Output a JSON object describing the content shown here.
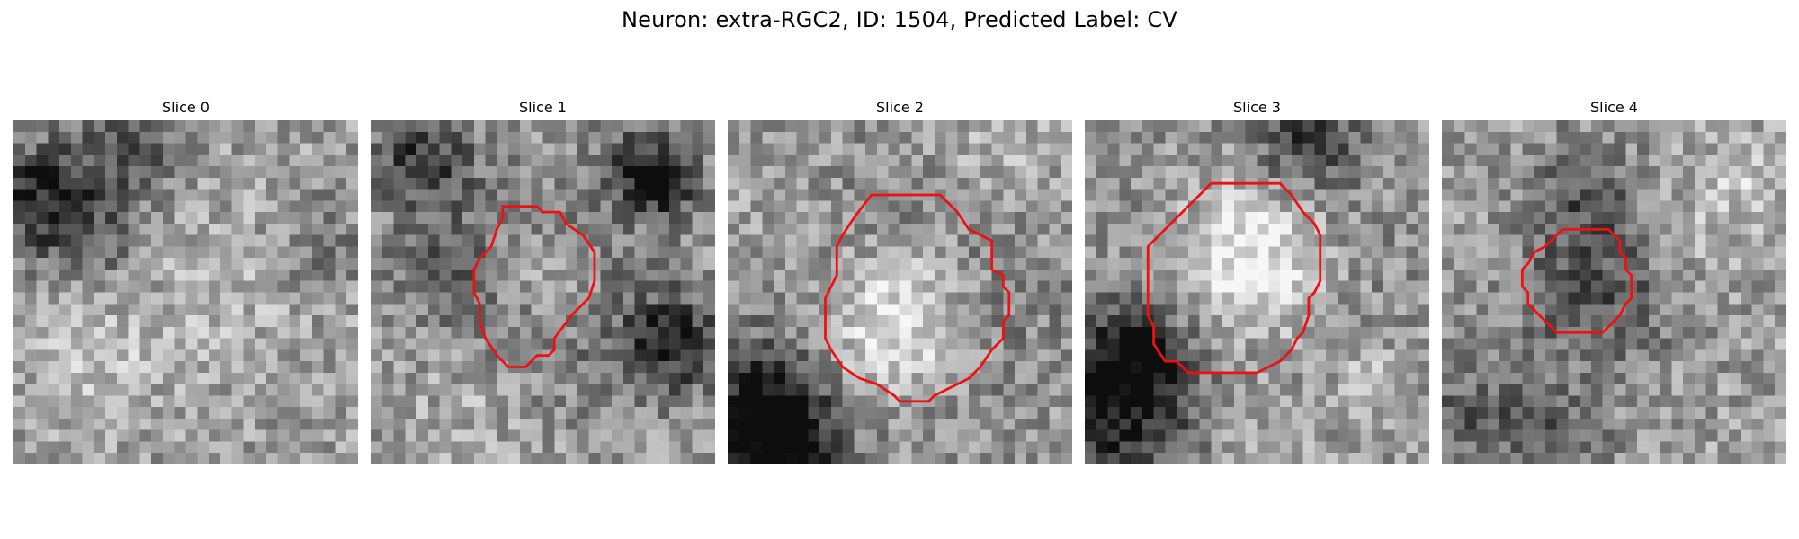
{
  "figure": {
    "title": "Neuron: extra-RGC2, ID: 1504, Predicted Label: CV"
  },
  "contour_color": "#ee1111",
  "image_grid_size": 30,
  "panels": [
    {
      "title": "Slice 0",
      "seed": 11,
      "blobs": [
        {
          "cx": 2,
          "cy": 6,
          "r": 3.5,
          "a": -0.45
        },
        {
          "cx": 10,
          "cy": 2,
          "r": 3,
          "a": -0.3
        },
        {
          "cx": 6,
          "cy": 10,
          "r": 3,
          "a": -0.2
        },
        {
          "cx": 26,
          "cy": 10,
          "r": 3,
          "a": -0.15
        },
        {
          "cx": 7,
          "cy": 20,
          "r": 4,
          "a": 0.12
        },
        {
          "cx": 18,
          "cy": 14,
          "r": 5,
          "a": 0.08
        }
      ],
      "contour": []
    },
    {
      "title": "Slice 1",
      "seed": 23,
      "blobs": [
        {
          "cx": 4,
          "cy": 3,
          "r": 3,
          "a": -0.4
        },
        {
          "cx": 23,
          "cy": 3,
          "r": 2.5,
          "a": -0.3
        },
        {
          "cx": 25,
          "cy": 5,
          "r": 2,
          "a": -0.45
        },
        {
          "cx": 26,
          "cy": 19,
          "r": 3,
          "a": -0.45
        },
        {
          "cx": 15,
          "cy": 14,
          "r": 7,
          "a": -0.25
        },
        {
          "cx": 15,
          "cy": 13,
          "r": 3.5,
          "a": 0.28
        },
        {
          "cx": 9,
          "cy": 24,
          "r": 4,
          "a": 0.1
        },
        {
          "cx": 5,
          "cy": 12,
          "r": 3,
          "a": -0.15
        }
      ],
      "contour": [
        [
          11.5,
          7.5
        ],
        [
          14.5,
          7.5
        ],
        [
          15,
          8
        ],
        [
          16.5,
          8
        ],
        [
          17,
          9
        ],
        [
          18.5,
          10
        ],
        [
          19.5,
          11.5
        ],
        [
          19.5,
          14
        ],
        [
          19,
          15.5
        ],
        [
          17.5,
          17
        ],
        [
          16,
          19
        ],
        [
          16,
          20
        ],
        [
          15.5,
          20.5
        ],
        [
          14.5,
          20.5
        ],
        [
          13.5,
          21.5
        ],
        [
          12,
          21.5
        ],
        [
          11,
          20.5
        ],
        [
          10,
          19
        ],
        [
          9.5,
          17.5
        ],
        [
          9.5,
          16
        ],
        [
          9,
          15
        ],
        [
          9,
          13
        ],
        [
          9.5,
          12
        ],
        [
          10.5,
          11
        ],
        [
          11,
          9.5
        ],
        [
          11.5,
          8.5
        ]
      ]
    },
    {
      "title": "Slice 2",
      "seed": 37,
      "blobs": [
        {
          "cx": 15,
          "cy": 16,
          "r": 8.5,
          "a": -0.28
        },
        {
          "cx": 14,
          "cy": 17,
          "r": 5,
          "a": 0.55
        },
        {
          "cx": 2,
          "cy": 25,
          "r": 4,
          "a": -0.55
        },
        {
          "cx": 5,
          "cy": 28,
          "r": 3,
          "a": -0.35
        },
        {
          "cx": 22,
          "cy": 4,
          "r": 4,
          "a": 0.12
        },
        {
          "cx": 4,
          "cy": 6,
          "r": 3,
          "a": 0.08
        }
      ],
      "contour": [
        [
          12.5,
          6.5
        ],
        [
          18.5,
          6.5
        ],
        [
          20,
          8
        ],
        [
          21,
          9.5
        ],
        [
          23,
          10.5
        ],
        [
          23,
          13
        ],
        [
          24,
          13.5
        ],
        [
          24,
          14.5
        ],
        [
          24.5,
          15
        ],
        [
          24.5,
          17
        ],
        [
          24,
          17.5
        ],
        [
          24,
          19
        ],
        [
          23,
          20
        ],
        [
          22,
          21.5
        ],
        [
          21,
          22.5
        ],
        [
          20,
          23
        ],
        [
          19,
          23.5
        ],
        [
          18,
          24
        ],
        [
          17.5,
          24.5
        ],
        [
          15,
          24.5
        ],
        [
          14.5,
          24
        ],
        [
          13,
          23
        ],
        [
          11.5,
          22.5
        ],
        [
          10,
          21.5
        ],
        [
          9,
          20
        ],
        [
          8.5,
          19
        ],
        [
          8.5,
          15.5
        ],
        [
          9,
          14.5
        ],
        [
          9.5,
          13.5
        ],
        [
          9.5,
          11
        ],
        [
          10,
          10
        ],
        [
          11,
          8.5
        ]
      ]
    },
    {
      "title": "Slice 3",
      "seed": 53,
      "blobs": [
        {
          "cx": 15,
          "cy": 13,
          "r": 8.5,
          "a": -0.22
        },
        {
          "cx": 14,
          "cy": 12,
          "r": 5,
          "a": 0.55
        },
        {
          "cx": 2,
          "cy": 25,
          "r": 5,
          "a": -0.5
        },
        {
          "cx": 4,
          "cy": 20,
          "r": 3,
          "a": -0.35
        },
        {
          "cx": 19,
          "cy": 1,
          "r": 3,
          "a": -0.35
        },
        {
          "cx": 24,
          "cy": 22,
          "r": 3,
          "a": 0.15
        },
        {
          "cx": 14,
          "cy": 26,
          "r": 4,
          "a": 0.1
        }
      ],
      "contour": [
        [
          11,
          5.5
        ],
        [
          17,
          5.5
        ],
        [
          18,
          6.5
        ],
        [
          19,
          8
        ],
        [
          20,
          9
        ],
        [
          20.5,
          10
        ],
        [
          20.5,
          14
        ],
        [
          20,
          15
        ],
        [
          19.5,
          15.5
        ],
        [
          19.5,
          17
        ],
        [
          19,
          18.5
        ],
        [
          18.5,
          19
        ],
        [
          18,
          20
        ],
        [
          17,
          21
        ],
        [
          15,
          22
        ],
        [
          9,
          22
        ],
        [
          8,
          21
        ],
        [
          7,
          21
        ],
        [
          6,
          19.5
        ],
        [
          6,
          18
        ],
        [
          5.5,
          17
        ],
        [
          5.5,
          11
        ],
        [
          6,
          10.5
        ],
        [
          7.5,
          9
        ],
        [
          9,
          7.5
        ],
        [
          10,
          6.5
        ]
      ]
    },
    {
      "title": "Slice 4",
      "seed": 71,
      "blobs": [
        {
          "cx": 13,
          "cy": 14,
          "r": 5,
          "a": -0.3
        },
        {
          "cx": 12,
          "cy": 5,
          "r": 3,
          "a": -0.25
        },
        {
          "cx": 21,
          "cy": 9,
          "r": 3,
          "a": 0.12
        },
        {
          "cx": 26,
          "cy": 5,
          "r": 2.5,
          "a": 0.15
        },
        {
          "cx": 2,
          "cy": 25,
          "r": 4,
          "a": -0.25
        },
        {
          "cx": 10,
          "cy": 27,
          "r": 3,
          "a": -0.2
        }
      ],
      "contour": [
        [
          10.5,
          9.5
        ],
        [
          14.5,
          9.5
        ],
        [
          15.5,
          10.5
        ],
        [
          15.5,
          11.5
        ],
        [
          16,
          12
        ],
        [
          16,
          13
        ],
        [
          16.5,
          13.5
        ],
        [
          16.5,
          15.5
        ],
        [
          16,
          16
        ],
        [
          15.5,
          17
        ],
        [
          14.5,
          18
        ],
        [
          14,
          18.5
        ],
        [
          10,
          18.5
        ],
        [
          9.5,
          18
        ],
        [
          9,
          17.5
        ],
        [
          8.5,
          17
        ],
        [
          7.5,
          16
        ],
        [
          7.5,
          15
        ],
        [
          7,
          14.5
        ],
        [
          7,
          13
        ],
        [
          7.5,
          12.5
        ],
        [
          8,
          11.5
        ],
        [
          9,
          11
        ],
        [
          9.5,
          10.5
        ]
      ]
    }
  ]
}
